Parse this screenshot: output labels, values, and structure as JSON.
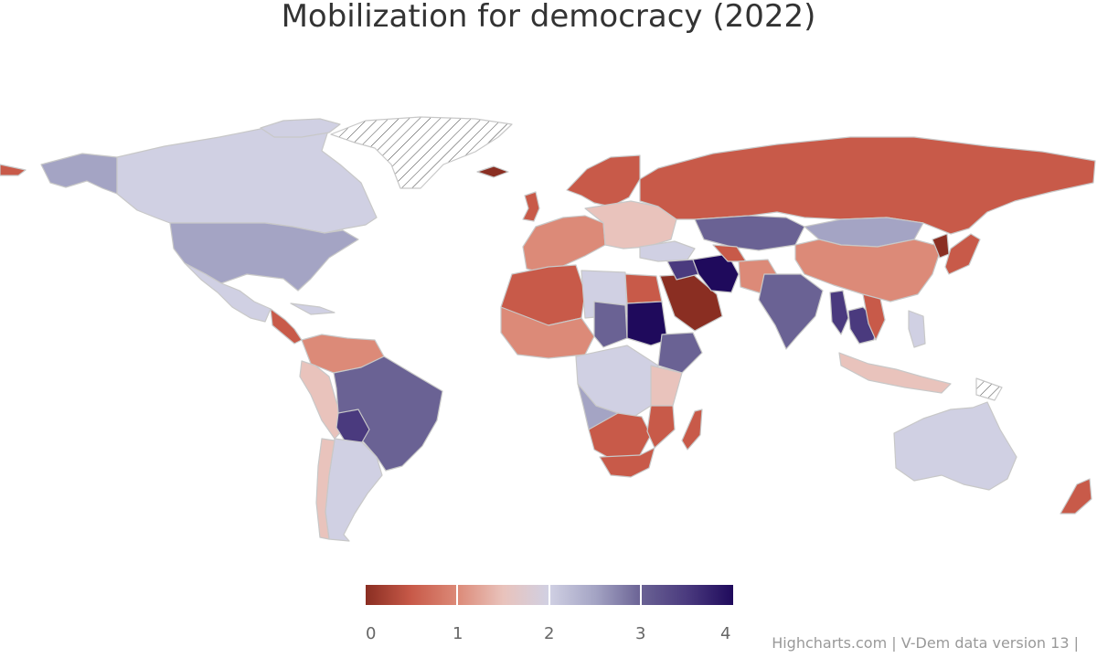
{
  "title": "Mobilization for democracy (2022)",
  "colors": {
    "c0": "#8a2e22",
    "c0_5": "#c85a49",
    "c1": "#dc8a78",
    "c1_5": "#e9c3bc",
    "c2": "#d0d0e3",
    "c2_5": "#a4a4c4",
    "c3": "#6a6294",
    "c3_5": "#4a3a7e",
    "c4": "#1f0a5c",
    "nodata": "#ffffff"
  },
  "legend": {
    "ticks": [
      "0",
      "1",
      "2",
      "3",
      "4"
    ],
    "min": 0,
    "max": 4
  },
  "credits": "Highcharts.com | V-Dem data version 13 |"
}
